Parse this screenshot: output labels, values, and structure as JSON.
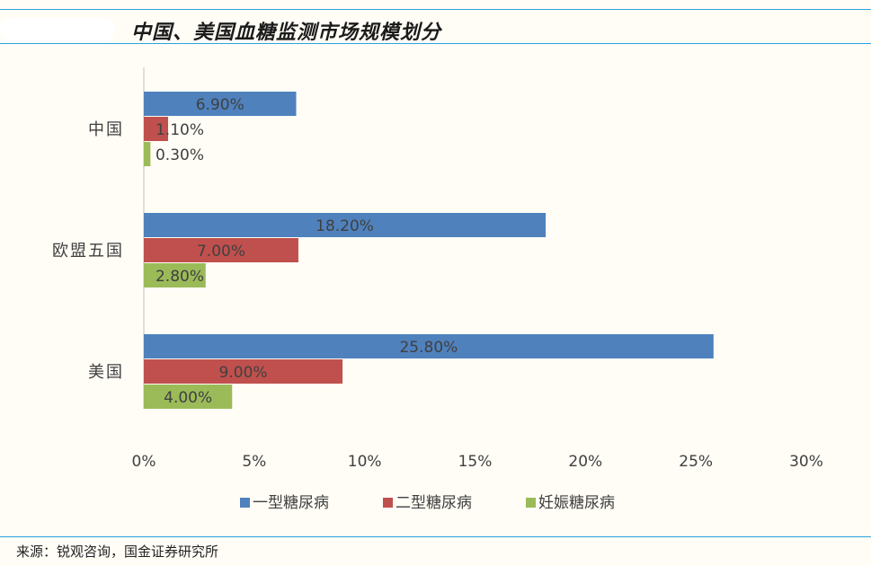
{
  "title": "中国、美国血糖监测市场规模划分",
  "source": "来源：锐观咨询，国金证券研究所",
  "colors": {
    "accent_rule": "#2aa3dd",
    "series": [
      "#4f81bd",
      "#c0504d",
      "#9bbb59"
    ]
  },
  "chart_data": {
    "type": "bar",
    "orientation": "horizontal",
    "categories": [
      "中国",
      "欧盟五国",
      "美国"
    ],
    "series": [
      {
        "name": "一型糖尿病",
        "values": [
          6.9,
          18.2,
          25.8
        ],
        "labels": [
          "6.90%",
          "18.20%",
          "25.80%"
        ]
      },
      {
        "name": "二型糖尿病",
        "values": [
          1.1,
          7.0,
          9.0
        ],
        "labels": [
          "1.10%",
          "7.00%",
          "9.00%"
        ]
      },
      {
        "name": "妊娠糖尿病",
        "values": [
          0.3,
          2.8,
          4.0
        ],
        "labels": [
          "0.30%",
          "2.80%",
          "4.00%"
        ]
      }
    ],
    "xlim": [
      0,
      30
    ],
    "xticks": [
      0,
      5,
      10,
      15,
      20,
      25,
      30
    ],
    "xtick_labels": [
      "0%",
      "5%",
      "10%",
      "15%",
      "20%",
      "25%",
      "30%"
    ],
    "grid": false,
    "legend": "bottom"
  }
}
